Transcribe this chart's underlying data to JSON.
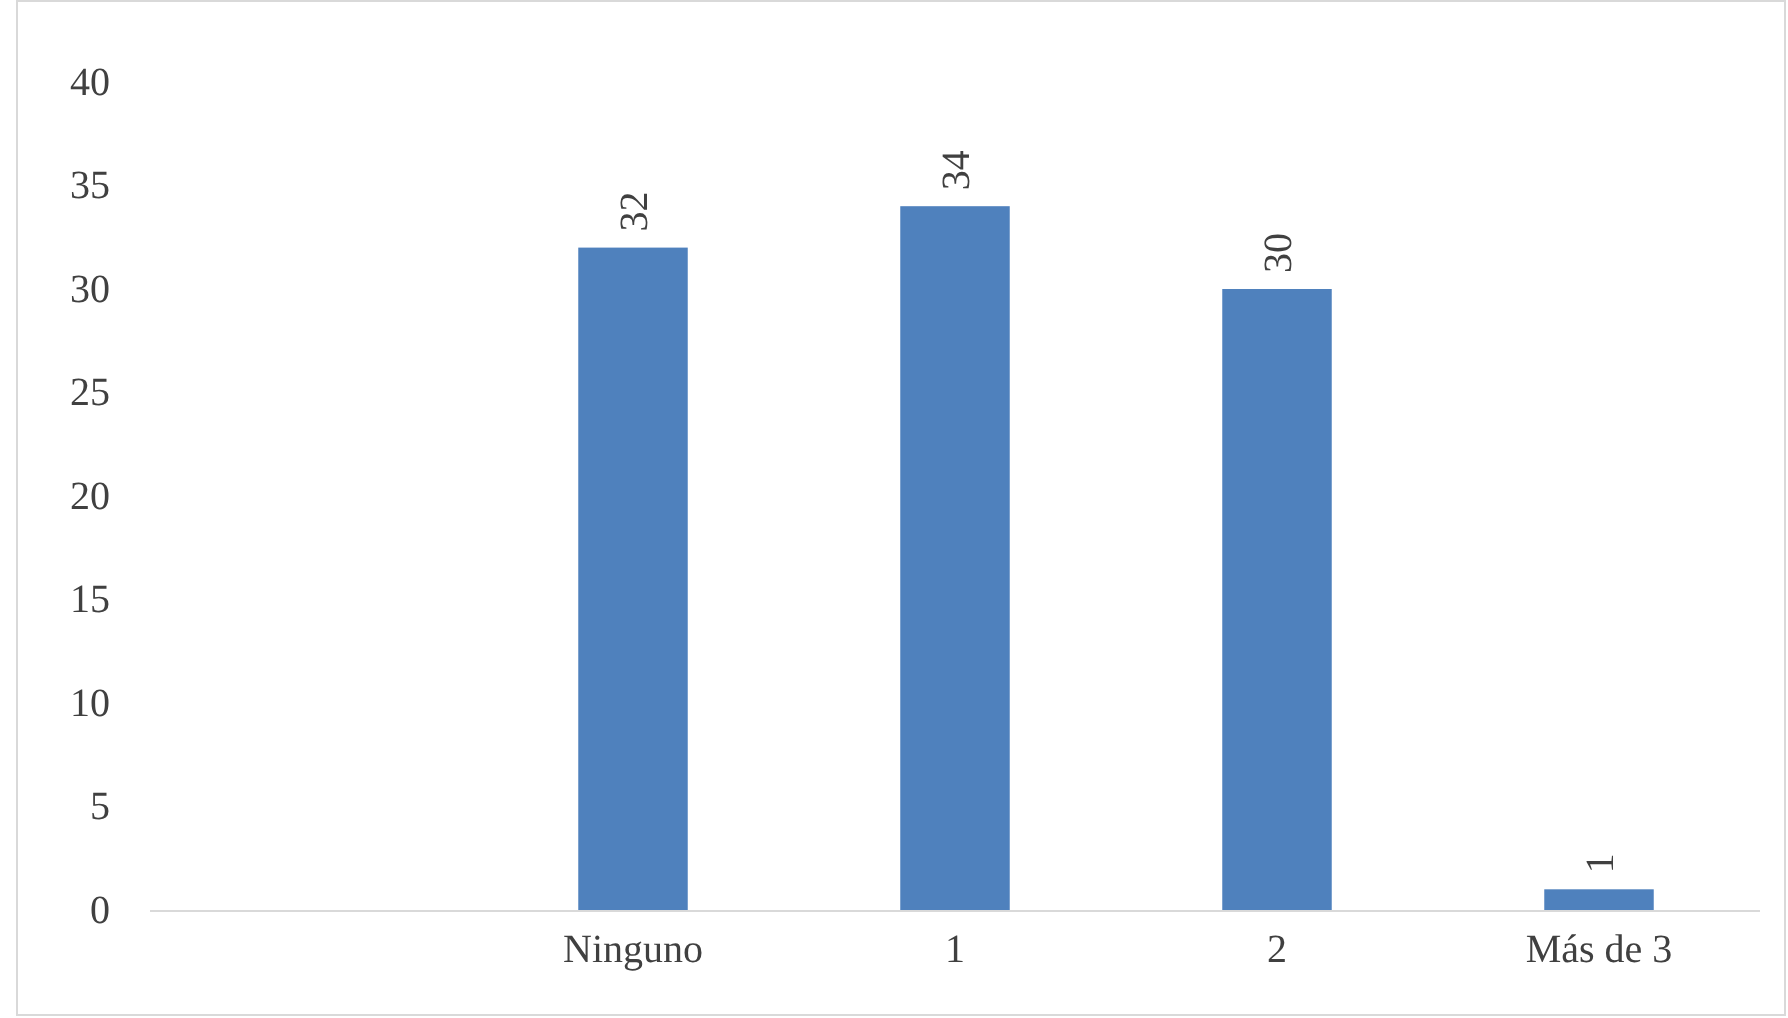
{
  "chart_data": {
    "type": "bar",
    "categories": [
      null,
      "Ninguno",
      "1",
      "2",
      "Más de 3"
    ],
    "values": [
      null,
      32,
      34,
      30,
      1
    ],
    "color": "#4f81bd",
    "ylim": [
      0,
      40
    ],
    "yticks": [
      0,
      5,
      10,
      15,
      20,
      25,
      30,
      35,
      40
    ],
    "grid": false,
    "data_labels": true
  }
}
